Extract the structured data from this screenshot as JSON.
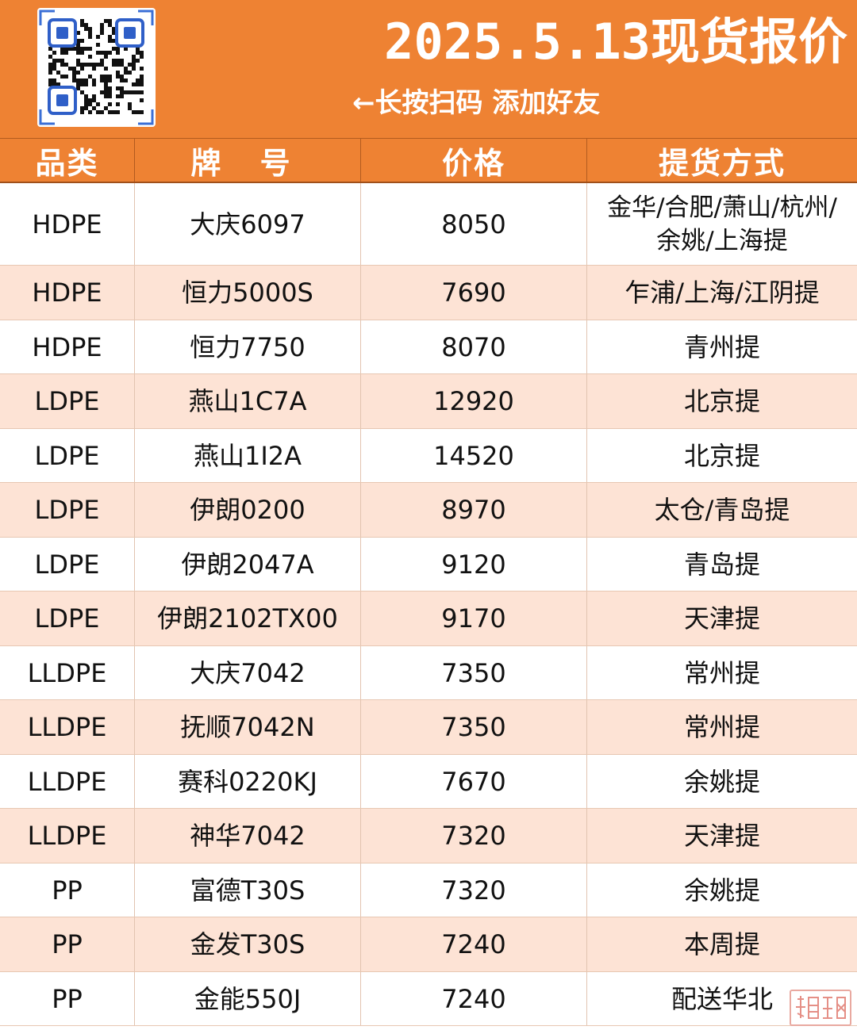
{
  "header": {
    "title": "2025.5.13现货报价",
    "subtitle": "←长按扫码 添加好友",
    "qr_icon": "qr-code-icon"
  },
  "colors": {
    "accent": "#ee8233",
    "row_alt": "#fde3d5",
    "row_plain": "#ffffff"
  },
  "columns": [
    "品类",
    "牌 号",
    "价格",
    "提货方式"
  ],
  "rows": [
    {
      "category": "HDPE",
      "grade": "大庆6097",
      "price": "8050",
      "delivery": "金华/合肥/萧山/杭州/\n余姚/上海提"
    },
    {
      "category": "HDPE",
      "grade": "恒力5000S",
      "price": "7690",
      "delivery": "乍浦/上海/江阴提"
    },
    {
      "category": "HDPE",
      "grade": "恒力7750",
      "price": "8070",
      "delivery": "青州提"
    },
    {
      "category": "LDPE",
      "grade": "燕山1C7A",
      "price": "12920",
      "delivery": "北京提"
    },
    {
      "category": "LDPE",
      "grade": "燕山1I2A",
      "price": "14520",
      "delivery": "北京提"
    },
    {
      "category": "LDPE",
      "grade": "伊朗0200",
      "price": "8970",
      "delivery": "太仓/青岛提"
    },
    {
      "category": "LDPE",
      "grade": "伊朗2047A",
      "price": "9120",
      "delivery": "青岛提"
    },
    {
      "category": "LDPE",
      "grade": "伊朗2102TX00",
      "price": "9170",
      "delivery": "天津提"
    },
    {
      "category": "LLDPE",
      "grade": "大庆7042",
      "price": "7350",
      "delivery": "常州提"
    },
    {
      "category": "LLDPE",
      "grade": "抚顺7042N",
      "price": "7350",
      "delivery": "常州提"
    },
    {
      "category": "LLDPE",
      "grade": "赛科0220KJ",
      "price": "7670",
      "delivery": "余姚提"
    },
    {
      "category": "LLDPE",
      "grade": "神华7042",
      "price": "7320",
      "delivery": "天津提"
    },
    {
      "category": "PP",
      "grade": "富德T30S",
      "price": "7320",
      "delivery": "余姚提"
    },
    {
      "category": "PP",
      "grade": "金发T30S",
      "price": "7240",
      "delivery": "本周提"
    },
    {
      "category": "PP",
      "grade": "金能550J",
      "price": "7240",
      "delivery": "配送华北"
    }
  ]
}
